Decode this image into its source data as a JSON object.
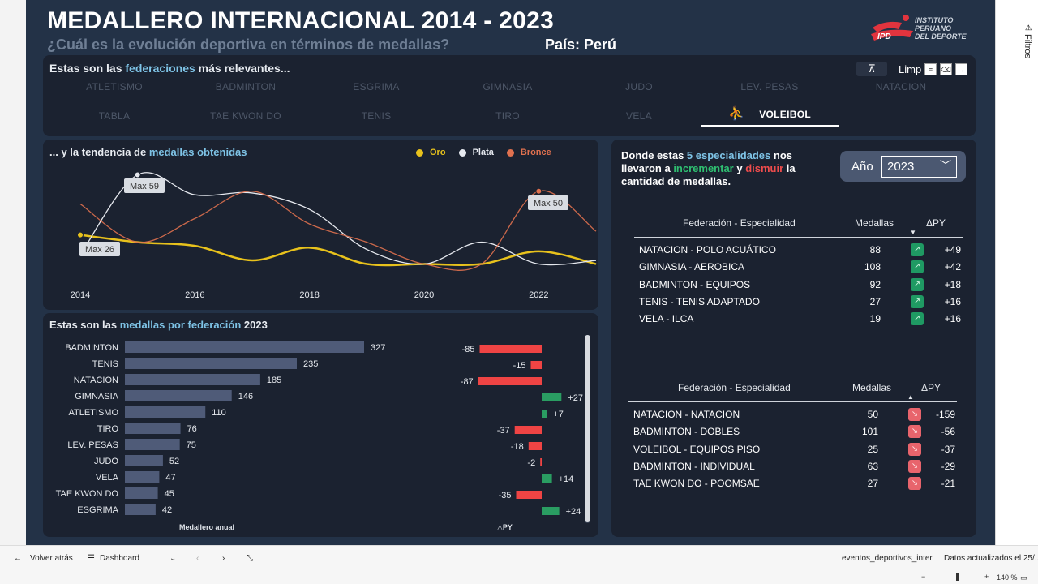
{
  "header": {
    "title": "MEDALLERO INTERNACIONAL 2014 - 2023",
    "subtitle": "¿Cuál es la evolución deportiva en términos de medallas?",
    "country": "País: Perú",
    "logo_text_1": "INSTITUTO",
    "logo_text_2": "PERUANO",
    "logo_text_3": "DEL DEPORTE",
    "logo_abbrev": "IPD"
  },
  "federations": {
    "heading_pre": "Estas son las ",
    "heading_hl": "federaciones",
    "heading_post": " más relevantes...",
    "clear_label": "Limpiar",
    "items": [
      "ATLETISMO",
      "BADMINTON",
      "ESGRIMA",
      "GIMNASIA",
      "JUDO",
      "LEV. PESAS",
      "NATACION",
      "TABLA",
      "TAE KWON DO",
      "TENIS",
      "TIRO",
      "VELA",
      "VOLEIBOL"
    ],
    "selected": "VOLEIBOL"
  },
  "trend": {
    "heading_pre": "... y la tendencia de ",
    "heading_hl": "medallas obtenidas",
    "legend": [
      {
        "name": "Oro",
        "color": "#e8c21c"
      },
      {
        "name": "Plata",
        "color": "#e5e8ee"
      },
      {
        "name": "Bronce",
        "color": "#e0714f"
      }
    ],
    "annotations": [
      "Max 59",
      "Max 26",
      "Max 50"
    ]
  },
  "bars": {
    "heading_pre": "Estas son las ",
    "heading_hl": "medallas por federación",
    "heading_post": " 2023",
    "caption": "Medallero anual",
    "py_caption": "△PY"
  },
  "specialties": {
    "heading_1": "Donde estas ",
    "heading_hl": "5 especialidades",
    "heading_2": " nos llevaron a ",
    "heading_inc": "incrementar",
    "heading_3": " y ",
    "heading_dec": "dismuir",
    "heading_4": " la cantidad de medallas.",
    "year_label": "Año",
    "year_value": "2023",
    "columns": [
      "Federación - Especialidad",
      "Medallas",
      "ΔPY"
    ],
    "increase": [
      {
        "name": "NATACION - POLO ACUÁTICO",
        "medals": "88",
        "delta": "+49"
      },
      {
        "name": "GIMNASIA - AEROBICA",
        "medals": "108",
        "delta": "+42"
      },
      {
        "name": "BADMINTON - EQUIPOS",
        "medals": "92",
        "delta": "+18"
      },
      {
        "name": "TENIS - TENIS ADAPTADO",
        "medals": "27",
        "delta": "+16"
      },
      {
        "name": "VELA - ILCA",
        "medals": "19",
        "delta": "+16"
      }
    ],
    "decrease": [
      {
        "name": "NATACION - NATACION",
        "medals": "50",
        "delta": "-159"
      },
      {
        "name": "BADMINTON - DOBLES",
        "medals": "101",
        "delta": "-56"
      },
      {
        "name": "VOLEIBOL - EQUIPOS PISO",
        "medals": "25",
        "delta": "-37"
      },
      {
        "name": "BADMINTON - INDIVIDUAL",
        "medals": "63",
        "delta": "-29"
      },
      {
        "name": "TAE KWON DO - POOMSAE",
        "medals": "27",
        "delta": "-21"
      }
    ]
  },
  "bottom": {
    "back": "Volver atrás",
    "page": "Dashboard",
    "dataset": "eventos_deportivos_inter",
    "updated": "Datos actualizados el 25/...",
    "zoom": "140 %",
    "filters": "Filtros"
  },
  "chart_data": [
    {
      "type": "line",
      "x": [
        2014,
        2015,
        2016,
        2017,
        2018,
        2019,
        2020,
        2021,
        2022,
        2023
      ],
      "series": [
        {
          "name": "Oro",
          "values": [
            26,
            22,
            20,
            12,
            19,
            10,
            10,
            10,
            17,
            10
          ]
        },
        {
          "name": "Plata",
          "values": [
            15,
            59,
            48,
            49,
            40,
            18,
            10,
            22,
            10,
            12
          ]
        },
        {
          "name": "Bronce",
          "values": [
            43,
            22,
            35,
            50,
            32,
            22,
            10,
            10,
            50,
            28
          ]
        }
      ],
      "xticks": [
        2014,
        2016,
        2018,
        2020,
        2022
      ],
      "ylim": [
        0,
        65
      ]
    },
    {
      "type": "bar",
      "categories": [
        "BADMINTON",
        "TENIS",
        "NATACION",
        "GIMNASIA",
        "ATLETISMO",
        "TIRO",
        "LEV. PESAS",
        "JUDO",
        "VELA",
        "TAE KWON DO",
        "ESGRIMA"
      ],
      "values": [
        327,
        235,
        185,
        146,
        110,
        76,
        75,
        52,
        47,
        45,
        42
      ],
      "delta": [
        -85,
        -15,
        -87,
        27,
        7,
        -37,
        -18,
        -2,
        14,
        -35,
        24
      ]
    }
  ]
}
